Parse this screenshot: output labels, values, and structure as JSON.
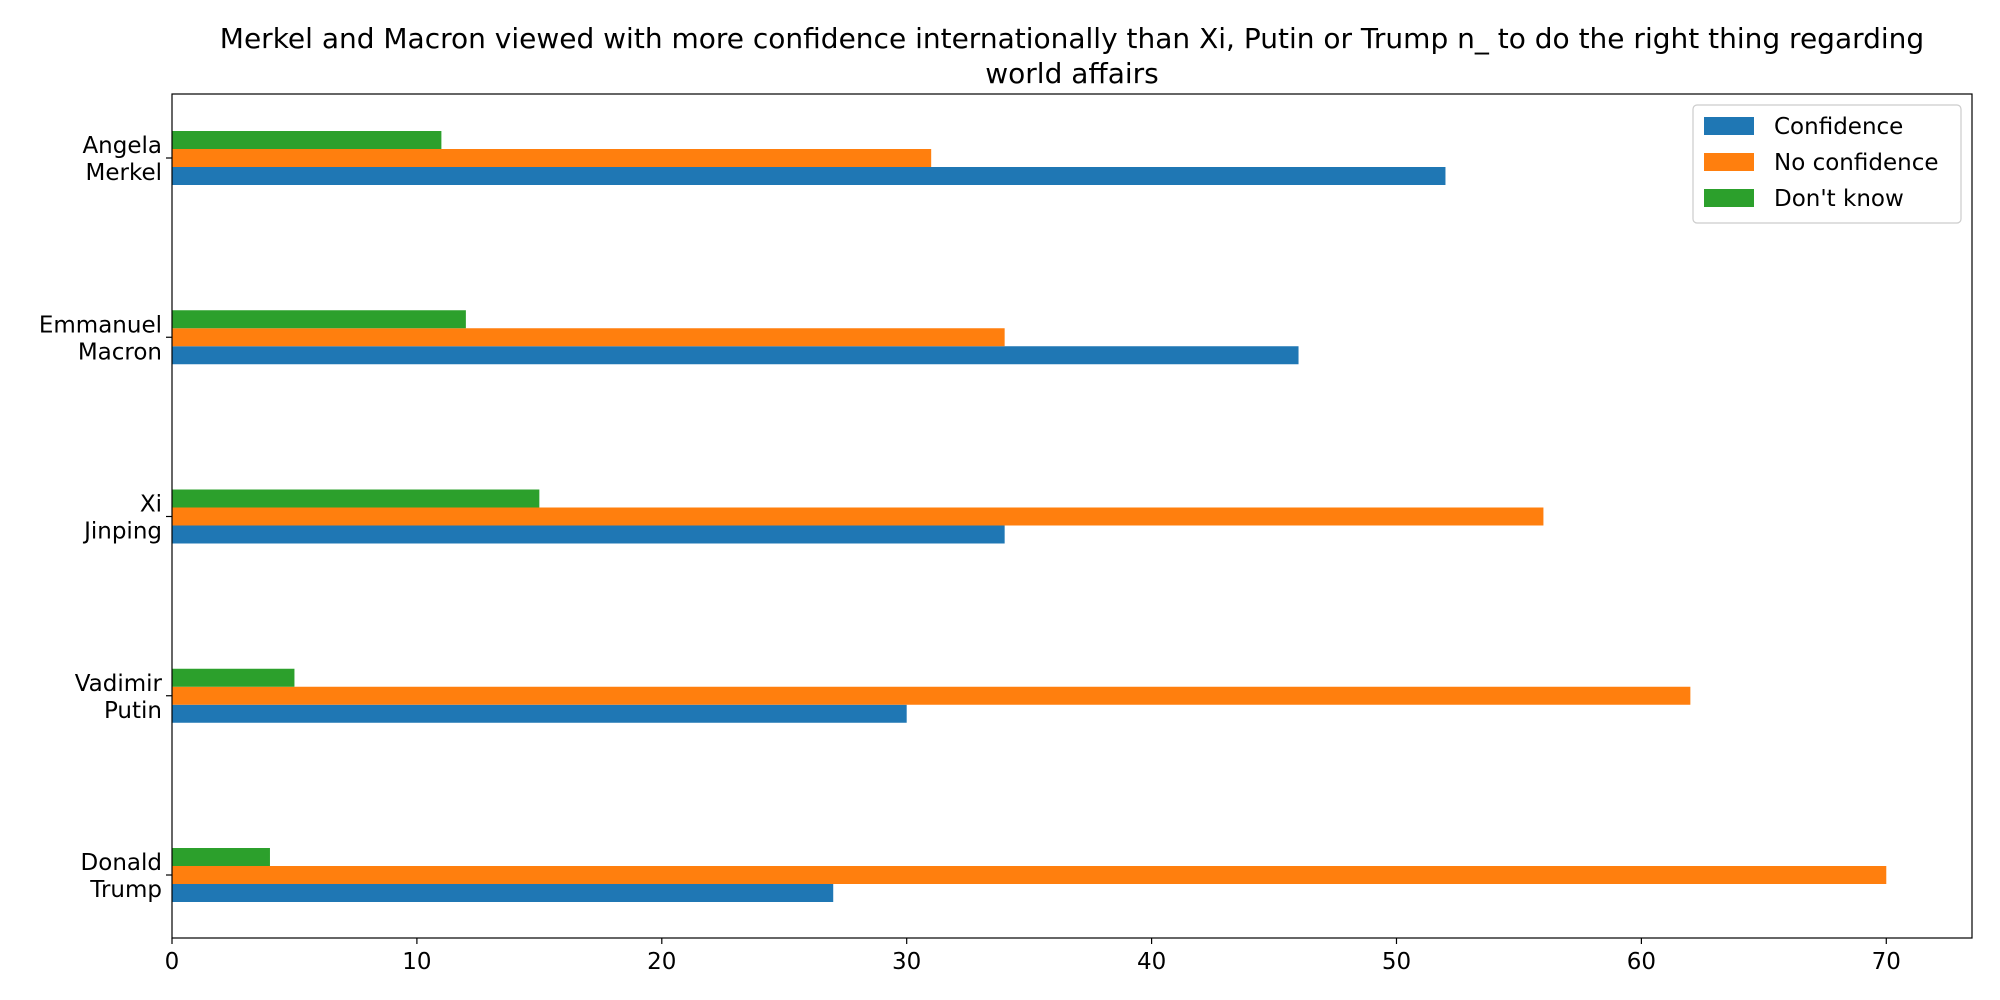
{
  "chart_data": {
    "type": "bar",
    "orientation": "horizontal",
    "title": "Merkel and Macron viewed with more confidence internationally than Xi, Putin or Trump n_ to do the right thing regarding world affairs",
    "title_lines": [
      "Merkel and Macron viewed with more confidence internationally than Xi, Putin or Trump n_ to do the right thing regarding",
      "world affairs"
    ],
    "xlabel": "",
    "ylabel": "",
    "xlim": [
      0,
      73.5
    ],
    "x_ticks": [
      0,
      10,
      20,
      30,
      40,
      50,
      60,
      70
    ],
    "grid": false,
    "legend_position": "top-right",
    "categories": [
      [
        "Angela",
        "Merkel"
      ],
      [
        "Emmanuel",
        "Macron"
      ],
      [
        "Xi",
        "Jinping"
      ],
      [
        "Vadimir",
        "Putin"
      ],
      [
        "Donald",
        "Trump"
      ]
    ],
    "series": [
      {
        "name": "Confidence",
        "color": "#1f77b4",
        "values": [
          52,
          46,
          34,
          30,
          27
        ]
      },
      {
        "name": "No confidence",
        "color": "#ff7f0e",
        "values": [
          31,
          34,
          56,
          62,
          70
        ]
      },
      {
        "name": "Don't know",
        "color": "#2ca02c",
        "values": [
          11,
          12,
          15,
          5,
          4
        ]
      }
    ]
  }
}
